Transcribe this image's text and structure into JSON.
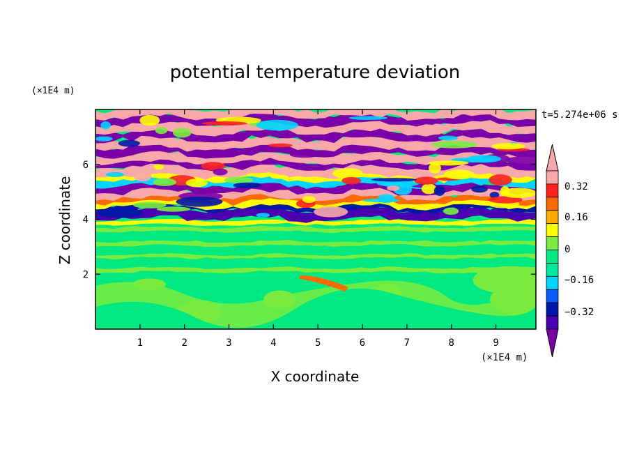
{
  "chart_data": {
    "type": "heatmap",
    "title": "potential temperature deviation",
    "xlabel": "X coordinate",
    "ylabel": "Z coordinate",
    "x_unit": "(×1E4 m)",
    "y_unit": "(×1E4 m)",
    "time_label": "t=5.274e+06 s",
    "xlim": [
      0,
      9.9
    ],
    "ylim": [
      0,
      8.0
    ],
    "x_ticks": [
      "1",
      "2",
      "3",
      "4",
      "5",
      "6",
      "7",
      "8",
      "9"
    ],
    "y_ticks": [
      "2",
      "4",
      "6"
    ],
    "colorbar": {
      "levels": [
        -0.48,
        -0.4,
        -0.32,
        -0.24,
        -0.16,
        -0.08,
        0,
        0.08,
        0.16,
        0.24,
        0.32,
        0.4,
        0.48
      ],
      "colors": [
        "#7a00a8",
        "#4a00b0",
        "#0018a8",
        "#0a5cff",
        "#00d4ff",
        "#00e8a0",
        "#00e880",
        "#7aec40",
        "#ffff00",
        "#ffaa00",
        "#ff6a00",
        "#ff2020",
        "#f8a8a8",
        "#f8a8a8"
      ],
      "tick_labels": [
        "0.32",
        "0.16",
        "0",
        "−0.16",
        "−0.32"
      ]
    }
  }
}
